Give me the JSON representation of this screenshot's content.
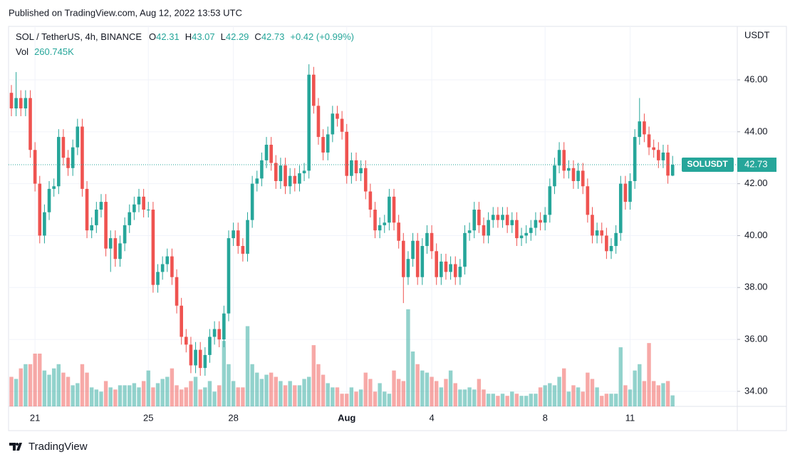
{
  "chart_data": {
    "type": "candlestick",
    "published": "Published on TradingView.com, Aug 12, 2022 13:53 UTC",
    "symbol": "SOL / TetherUS, 4h, BINANCE",
    "ohlc_keys": [
      "O",
      "H",
      "L",
      "C"
    ],
    "change": "+0.42 (+0.99%)",
    "volume_title": "Vol",
    "volume_last_label": "260.745K",
    "axis_unit": "USDT",
    "last_price_name": "SOLUSDT",
    "brand": "TradingView",
    "up_color": "#26a69a",
    "down_color": "#ef5350",
    "grid": true,
    "categories": [
      null,
      null,
      null,
      null,
      null,
      "21",
      null,
      null,
      null,
      null,
      null,
      null,
      null,
      null,
      null,
      null,
      null,
      null,
      null,
      null,
      null,
      null,
      null,
      null,
      null,
      null,
      null,
      null,
      null,
      "25",
      null,
      null,
      null,
      null,
      null,
      null,
      null,
      null,
      null,
      null,
      null,
      null,
      null,
      null,
      null,
      null,
      null,
      "28",
      null,
      null,
      null,
      null,
      null,
      null,
      null,
      null,
      null,
      null,
      null,
      null,
      null,
      null,
      null,
      null,
      null,
      null,
      null,
      null,
      null,
      null,
      null,
      "Aug",
      null,
      null,
      null,
      null,
      null,
      null,
      null,
      null,
      null,
      null,
      null,
      null,
      null,
      null,
      null,
      null,
      null,
      "4",
      null,
      null,
      null,
      null,
      null,
      null,
      null,
      null,
      null,
      null,
      null,
      null,
      null,
      null,
      null,
      null,
      null,
      null,
      null,
      null,
      null,
      null,
      null,
      "8",
      null,
      null,
      null,
      null,
      null,
      null,
      null,
      null,
      null,
      null,
      null,
      null,
      null,
      null,
      null,
      null,
      null,
      "11",
      null,
      null,
      null,
      null,
      null,
      null,
      null,
      null,
      null
    ],
    "series": [
      {
        "open": [
          45.5,
          44.9,
          45.3,
          44.9,
          45.3,
          43.3,
          42.0,
          40.0,
          40.9,
          41.8,
          41.9,
          43.8,
          43.0,
          42.6,
          43.4,
          44.2,
          41.8,
          40.2,
          40.4,
          41.0,
          41.3,
          39.5,
          39.9,
          39.1,
          39.7,
          40.4,
          40.9,
          41.2,
          41.5,
          41.0,
          41.0,
          38.1,
          38.6,
          38.9,
          39.2,
          38.4,
          37.3,
          36.1,
          35.8,
          35.0,
          35.6,
          34.9,
          35.4,
          36.1,
          36.4,
          36.0,
          37.0,
          39.9,
          40.2,
          39.6,
          39.3,
          40.6,
          42.0,
          42.2,
          42.9,
          43.5,
          42.8,
          42.1,
          42.7,
          41.9,
          42.3,
          42.0,
          42.4,
          42.5,
          46.2,
          45.0,
          43.8,
          43.2,
          43.9,
          44.7,
          44.5,
          44.0,
          42.3,
          42.9,
          42.4,
          42.6,
          41.7,
          41.0,
          40.2,
          40.4,
          40.5,
          41.5,
          40.5,
          39.8,
          38.4,
          39.1,
          39.8,
          38.4,
          39.6,
          40.1,
          39.4,
          38.4,
          39.0,
          38.6,
          38.9,
          38.4,
          38.8,
          40.1,
          40.2,
          41.0,
          40.4,
          40.0,
          40.6,
          40.8,
          40.6,
          40.8,
          40.4,
          40.6,
          39.9,
          40.0,
          40.1,
          40.3,
          40.6,
          40.5,
          40.8,
          41.9,
          42.7,
          43.3,
          42.5,
          42.6,
          42.1,
          42.5,
          41.9,
          40.8,
          40.0,
          40.2,
          40.0,
          39.4,
          39.6,
          40.1,
          42.0,
          41.3,
          42.1,
          43.8,
          44.4,
          43.9,
          43.4,
          43.3,
          42.9,
          43.2,
          42.31
        ],
        "high": [
          45.8,
          46.3,
          45.6,
          45.6,
          45.6,
          43.6,
          42.3,
          41.2,
          42.1,
          42.2,
          44.1,
          44.1,
          43.3,
          43.7,
          44.5,
          44.5,
          42.1,
          40.7,
          41.3,
          41.6,
          41.6,
          40.2,
          40.2,
          40.0,
          40.7,
          41.2,
          41.5,
          41.8,
          41.8,
          41.3,
          41.3,
          38.9,
          39.2,
          39.5,
          39.5,
          38.7,
          37.6,
          36.4,
          36.1,
          35.9,
          35.9,
          35.7,
          36.4,
          36.7,
          36.7,
          37.3,
          40.2,
          40.5,
          40.5,
          39.9,
          40.9,
          42.3,
          42.5,
          43.2,
          43.8,
          43.8,
          43.1,
          43.0,
          43.0,
          42.6,
          42.6,
          42.7,
          42.8,
          46.6,
          46.5,
          45.3,
          44.1,
          44.2,
          45.0,
          45.0,
          44.8,
          44.3,
          43.2,
          43.2,
          42.9,
          42.9,
          42.0,
          41.3,
          40.7,
          40.8,
          41.8,
          41.8,
          40.8,
          40.1,
          39.4,
          40.1,
          40.1,
          39.9,
          40.4,
          40.4,
          39.7,
          39.3,
          39.3,
          39.2,
          39.2,
          39.1,
          40.4,
          40.5,
          41.3,
          41.3,
          40.7,
          40.9,
          41.1,
          41.1,
          41.1,
          41.1,
          40.9,
          40.9,
          40.3,
          40.4,
          40.6,
          40.9,
          40.9,
          41.1,
          42.2,
          43.0,
          43.6,
          43.6,
          42.9,
          42.9,
          42.8,
          42.8,
          42.2,
          41.1,
          40.5,
          40.5,
          40.3,
          39.9,
          40.4,
          42.3,
          42.3,
          42.4,
          44.1,
          45.3,
          44.7,
          44.2,
          43.7,
          43.6,
          43.5,
          43.5,
          43.07
        ],
        "low": [
          44.6,
          44.6,
          44.6,
          44.6,
          43.0,
          41.7,
          39.7,
          39.7,
          40.6,
          41.5,
          41.6,
          42.7,
          42.3,
          42.3,
          43.1,
          41.5,
          39.9,
          39.9,
          40.1,
          40.7,
          39.2,
          38.6,
          38.8,
          38.8,
          39.4,
          40.1,
          40.6,
          40.9,
          40.7,
          40.7,
          37.8,
          37.8,
          38.3,
          38.6,
          38.1,
          37.0,
          35.8,
          35.5,
          34.7,
          34.7,
          34.6,
          34.6,
          35.1,
          35.8,
          35.7,
          35.7,
          36.7,
          39.6,
          39.3,
          39.0,
          39.0,
          40.3,
          41.7,
          41.9,
          42.6,
          42.5,
          41.8,
          41.8,
          41.6,
          41.6,
          41.7,
          41.7,
          42.1,
          42.2,
          44.7,
          43.5,
          42.9,
          42.9,
          43.6,
          44.2,
          43.7,
          42.0,
          42.0,
          42.1,
          42.1,
          41.4,
          40.7,
          39.9,
          39.9,
          40.1,
          40.2,
          40.2,
          39.5,
          37.4,
          38.1,
          38.8,
          38.1,
          38.1,
          39.3,
          39.1,
          38.1,
          38.1,
          38.3,
          38.3,
          38.1,
          38.1,
          38.5,
          39.8,
          39.9,
          40.1,
          39.7,
          39.7,
          40.3,
          40.3,
          40.3,
          40.1,
          40.1,
          39.6,
          39.6,
          39.7,
          39.8,
          40.0,
          40.2,
          40.2,
          40.5,
          41.6,
          42.4,
          42.2,
          42.2,
          41.8,
          41.8,
          41.6,
          40.5,
          39.7,
          39.7,
          39.7,
          39.1,
          39.1,
          39.3,
          39.8,
          41.0,
          41.0,
          41.8,
          43.5,
          43.6,
          43.1,
          43.0,
          42.6,
          42.6,
          42.0,
          42.29
        ],
        "close": [
          44.9,
          45.3,
          44.9,
          45.3,
          43.3,
          42.0,
          40.0,
          40.9,
          41.8,
          41.9,
          43.8,
          43.0,
          42.6,
          43.4,
          44.2,
          41.8,
          40.2,
          40.4,
          41.0,
          41.3,
          39.5,
          39.9,
          39.1,
          39.7,
          40.4,
          40.9,
          41.2,
          41.5,
          41.0,
          41.0,
          38.1,
          38.6,
          38.9,
          39.2,
          38.4,
          37.3,
          36.1,
          35.8,
          35.0,
          35.6,
          34.9,
          35.4,
          36.1,
          36.4,
          36.0,
          37.0,
          39.9,
          40.2,
          39.6,
          39.3,
          40.6,
          42.0,
          42.2,
          42.9,
          43.5,
          42.8,
          42.1,
          42.7,
          41.9,
          42.3,
          42.0,
          42.4,
          42.5,
          46.2,
          45.0,
          43.8,
          43.2,
          43.9,
          44.7,
          44.5,
          44.0,
          42.3,
          42.9,
          42.4,
          42.6,
          41.7,
          41.0,
          40.2,
          40.4,
          40.5,
          41.5,
          40.5,
          39.8,
          38.4,
          39.1,
          39.8,
          38.4,
          39.6,
          40.1,
          39.4,
          38.4,
          39.0,
          38.6,
          38.9,
          38.4,
          38.8,
          40.1,
          40.2,
          41.0,
          40.4,
          40.0,
          40.6,
          40.8,
          40.6,
          40.8,
          40.4,
          40.6,
          39.9,
          40.0,
          40.1,
          40.3,
          40.6,
          40.5,
          40.8,
          41.9,
          42.7,
          43.3,
          42.5,
          42.6,
          42.1,
          42.5,
          41.9,
          40.8,
          40.0,
          40.2,
          40.0,
          39.4,
          39.6,
          40.1,
          42.0,
          41.3,
          42.1,
          43.8,
          44.4,
          43.9,
          43.4,
          43.3,
          42.9,
          43.2,
          42.31,
          42.73
        ],
        "volume": [
          700,
          650,
          900,
          1000,
          1000,
          1250,
          1250,
          850,
          750,
          900,
          1000,
          800,
          700,
          500,
          550,
          1000,
          800,
          450,
          400,
          350,
          600,
          450,
          400,
          500,
          500,
          500,
          550,
          450,
          600,
          850,
          450,
          550,
          650,
          700,
          900,
          500,
          400,
          450,
          600,
          700,
          400,
          450,
          600,
          350,
          500,
          1550,
          1000,
          600,
          450,
          450,
          1900,
          1000,
          800,
          650,
          750,
          800,
          700,
          600,
          500,
          600,
          500,
          500,
          650,
          700,
          1450,
          1000,
          750,
          550,
          450,
          450,
          300,
          300,
          450,
          350,
          400,
          800,
          650,
          350,
          550,
          350,
          300,
          850,
          650,
          600,
          2300,
          1300,
          1000,
          850,
          800,
          700,
          600,
          450,
          650,
          850,
          550,
          400,
          400,
          450,
          400,
          650,
          400,
          300,
          300,
          250,
          300,
          250,
          350,
          300,
          250,
          250,
          300,
          300,
          450,
          500,
          550,
          500,
          700,
          900,
          350,
          500,
          450,
          350,
          800,
          650,
          450,
          250,
          300,
          300,
          300,
          1400,
          500,
          400,
          850,
          1000,
          600,
          1500,
          600,
          500,
          550,
          600,
          260.745
        ]
      }
    ],
    "ylim": [
      33.42,
      48.06
    ],
    "yticks": [
      {
        "value": 34,
        "label": "34.00"
      },
      {
        "value": 36,
        "label": "36.00"
      },
      {
        "value": 38,
        "label": "38.00"
      },
      {
        "value": 40,
        "label": "40.00"
      },
      {
        "value": 42,
        "label": "42.00"
      },
      {
        "value": 44,
        "label": "44.00"
      },
      {
        "value": 46,
        "label": "46.00"
      }
    ],
    "volume_lim": [
      0,
      9000
    ]
  }
}
